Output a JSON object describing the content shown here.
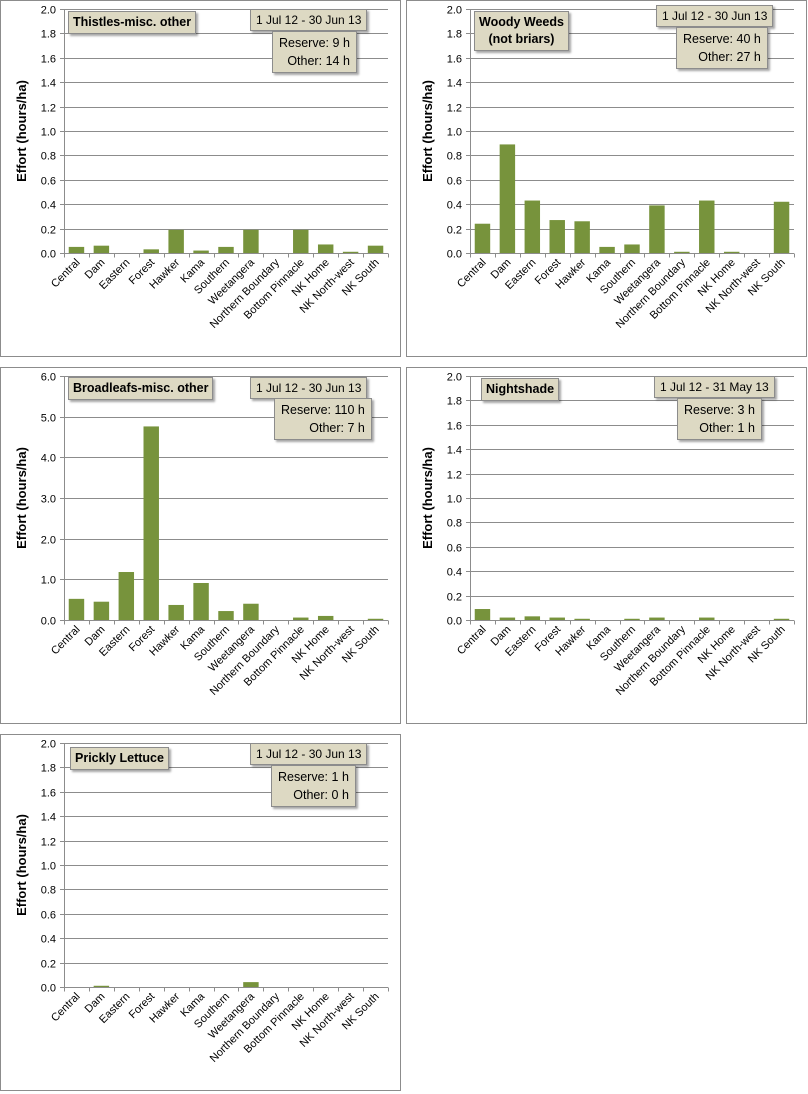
{
  "colors": {
    "bar": "#77933c",
    "box_fill": "#ddd9c3",
    "grid": "#8c8c8c"
  },
  "categories": [
    "Central",
    "Dam",
    "Eastern",
    "Forest",
    "Hawker",
    "Kama",
    "Southern",
    "Weetangera",
    "Northern Boundary",
    "Bottom Pinnacle",
    "NK Home",
    "NK North-west",
    "NK South"
  ],
  "charts": [
    {
      "title_lines": [
        "Thistles-misc. other"
      ],
      "date_range": "1 Jul 12  -  30 Jun 13",
      "reserve_label": "Reserve:",
      "reserve_value": "9 h",
      "other_label": "Other:",
      "other_value": "14 h"
    },
    {
      "title_lines": [
        "Woody Weeds",
        "(not briars)"
      ],
      "date_range": "1 Jul 12  -  30 Jun 13",
      "reserve_label": "Reserve:",
      "reserve_value": "40 h",
      "other_label": "Other:",
      "other_value": "27 h"
    },
    {
      "title_lines": [
        "Broadleafs-misc. other"
      ],
      "date_range": "1 Jul 12  -  30 Jun 13",
      "reserve_label": "Reserve:",
      "reserve_value": "110 h",
      "other_label": "Other:",
      "other_value": "7 h"
    },
    {
      "title_lines": [
        "Nightshade"
      ],
      "date_range": "1 Jul 12  -  31 May 13",
      "reserve_label": "Reserve:",
      "reserve_value": "3 h",
      "other_label": "Other:",
      "other_value": "1 h"
    },
    {
      "title_lines": [
        "Prickly Lettuce"
      ],
      "date_range": "1 Jul 12  -  30 Jun 13",
      "reserve_label": "Reserve:",
      "reserve_value": "1 h",
      "other_label": "Other:",
      "other_value": "0 h"
    }
  ],
  "chart_data": [
    {
      "type": "bar",
      "title": "Thistles-misc. other",
      "categories": [
        "Central",
        "Dam",
        "Eastern",
        "Forest",
        "Hawker",
        "Kama",
        "Southern",
        "Weetangera",
        "Northern Boundary",
        "Bottom Pinnacle",
        "NK Home",
        "NK North-west",
        "NK South"
      ],
      "values": [
        0.05,
        0.06,
        0.0,
        0.03,
        0.19,
        0.02,
        0.05,
        0.19,
        0.0,
        0.19,
        0.07,
        0.01,
        0.06
      ],
      "ylabel": "Effort  (hours/ha)",
      "ylim": [
        0,
        2.0
      ],
      "yticks": [
        "0.0",
        "0.2",
        "0.4",
        "0.6",
        "0.8",
        "1.0",
        "1.2",
        "1.4",
        "1.6",
        "1.8",
        "2.0"
      ],
      "grid": true
    },
    {
      "type": "bar",
      "title": "Woody Weeds (not briars)",
      "categories": [
        "Central",
        "Dam",
        "Eastern",
        "Forest",
        "Hawker",
        "Kama",
        "Southern",
        "Weetangera",
        "Northern Boundary",
        "Bottom Pinnacle",
        "NK Home",
        "NK North-west",
        "NK South"
      ],
      "values": [
        0.24,
        0.89,
        0.43,
        0.27,
        0.26,
        0.05,
        0.07,
        0.39,
        0.01,
        0.43,
        0.01,
        0.0,
        0.42
      ],
      "ylabel": "Effort  (hours/ha)",
      "ylim": [
        0,
        2.0
      ],
      "yticks": [
        "0.0",
        "0.2",
        "0.4",
        "0.6",
        "0.8",
        "1.0",
        "1.2",
        "1.4",
        "1.6",
        "1.8",
        "2.0"
      ],
      "grid": true
    },
    {
      "type": "bar",
      "title": "Broadleafs-misc. other",
      "categories": [
        "Central",
        "Dam",
        "Eastern",
        "Forest",
        "Hawker",
        "Kama",
        "Southern",
        "Weetangera",
        "Northern Boundary",
        "Bottom Pinnacle",
        "NK Home",
        "NK North-west",
        "NK South"
      ],
      "values": [
        0.52,
        0.45,
        1.18,
        4.76,
        0.37,
        0.91,
        0.22,
        0.4,
        0.0,
        0.06,
        0.1,
        0.0,
        0.03
      ],
      "ylabel": "Effort  (hours/ha)",
      "ylim": [
        0,
        6.0
      ],
      "yticks": [
        "0.0",
        "1.0",
        "2.0",
        "3.0",
        "4.0",
        "5.0",
        "6.0"
      ],
      "grid": true
    },
    {
      "type": "bar",
      "title": "Nightshade",
      "categories": [
        "Central",
        "Dam",
        "Eastern",
        "Forest",
        "Hawker",
        "Kama",
        "Southern",
        "Weetangera",
        "Northern Boundary",
        "Bottom Pinnacle",
        "NK Home",
        "NK North-west",
        "NK South"
      ],
      "values": [
        0.09,
        0.02,
        0.03,
        0.02,
        0.01,
        0.0,
        0.01,
        0.02,
        0.0,
        0.02,
        0.0,
        0.0,
        0.01
      ],
      "ylabel": "Effort  (hours/ha)",
      "ylim": [
        0,
        2.0
      ],
      "yticks": [
        "0.0",
        "0.2",
        "0.4",
        "0.6",
        "0.8",
        "1.0",
        "1.2",
        "1.4",
        "1.6",
        "1.8",
        "2.0"
      ],
      "grid": true
    },
    {
      "type": "bar",
      "title": "Prickly Lettuce",
      "categories": [
        "Central",
        "Dam",
        "Eastern",
        "Forest",
        "Hawker",
        "Kama",
        "Southern",
        "Weetangera",
        "Northern Boundary",
        "Bottom Pinnacle",
        "NK Home",
        "NK North-west",
        "NK South"
      ],
      "values": [
        0.0,
        0.01,
        0.0,
        0.0,
        0.0,
        0.0,
        0.0,
        0.04,
        0.0,
        0.0,
        0.0,
        0.0,
        0.0
      ],
      "ylabel": "Effort  (hours/ha)",
      "ylim": [
        0,
        2.0
      ],
      "yticks": [
        "0.0",
        "0.2",
        "0.4",
        "0.6",
        "0.8",
        "1.0",
        "1.2",
        "1.4",
        "1.6",
        "1.8",
        "2.0"
      ],
      "grid": true
    }
  ]
}
